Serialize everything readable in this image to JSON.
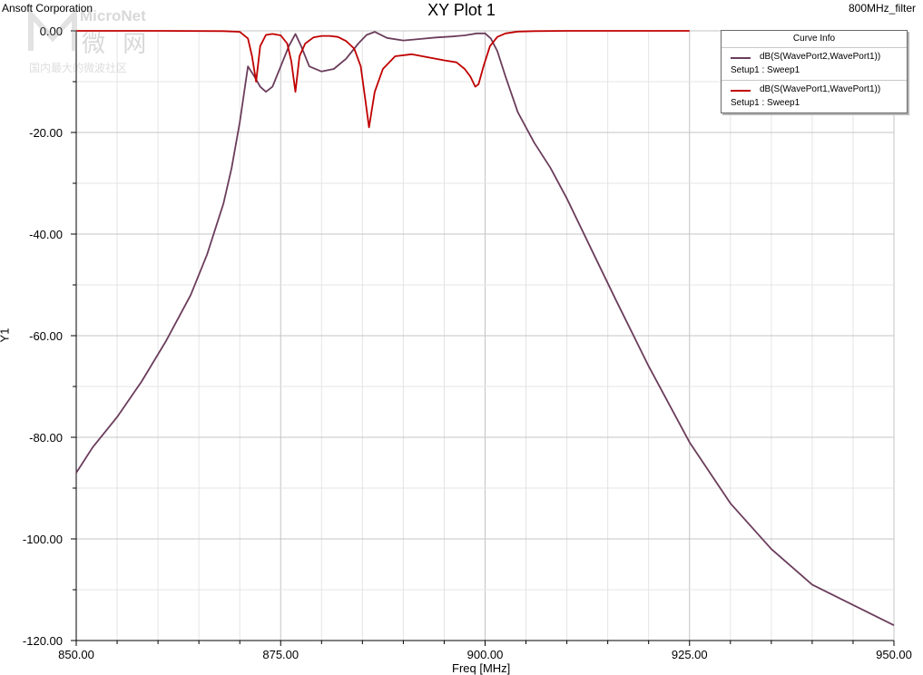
{
  "header": {
    "company": "Ansoft Corporation",
    "title": "XY Plot 1",
    "project": "800MHz_filter"
  },
  "watermark": {
    "brand": "MicroNet",
    "brand_cn": "微 网",
    "tagline": "国内最大的微波社区"
  },
  "legend": {
    "header": "Curve Info",
    "entries": [
      {
        "name": "dB(S(WavePort2,WavePort1))",
        "setup": "Setup1 : Sweep1",
        "color": "#6b3d5c"
      },
      {
        "name": "dB(S(WavePort1,WavePort1))",
        "setup": "Setup1 : Sweep1",
        "color": "#c00000"
      }
    ]
  },
  "chart_data": {
    "type": "line",
    "title": "XY Plot 1",
    "xlabel": "Freq [MHz]",
    "ylabel": "Y1",
    "xlim": [
      850,
      950
    ],
    "ylim": [
      -120,
      0
    ],
    "x_ticks": [
      "850.00",
      "875.00",
      "900.00",
      "925.00",
      "950.00"
    ],
    "y_ticks": [
      "0.00",
      "-20.00",
      "-40.00",
      "-60.00",
      "-80.00",
      "-100.00",
      "-120.00"
    ],
    "grid": true,
    "legend_position": "top-right",
    "series": [
      {
        "name": "dB(S(WavePort2,WavePort1))",
        "color": "#6b3d5c",
        "x": [
          850,
          852,
          855,
          858,
          861,
          864,
          866,
          868,
          869,
          870,
          871,
          871.8,
          872.5,
          873.2,
          874,
          875,
          876,
          876.8,
          877.5,
          878.5,
          880,
          881.5,
          883,
          884.5,
          885.5,
          886.5,
          888,
          890,
          892,
          894,
          896,
          897.5,
          899,
          900,
          900.7,
          901.5,
          902.5,
          904,
          906,
          908,
          910,
          913,
          916,
          920,
          925,
          930,
          935,
          940,
          945,
          950
        ],
        "y": [
          -87,
          -82,
          -76,
          -69,
          -61,
          -52,
          -44,
          -34,
          -27,
          -18,
          -7,
          -9,
          -11,
          -12,
          -11,
          -7,
          -3,
          -0.6,
          -3,
          -7,
          -8,
          -7.5,
          -5.5,
          -2.5,
          -0.8,
          -0.2,
          -1.4,
          -1.9,
          -1.6,
          -1.3,
          -1.1,
          -0.9,
          -0.5,
          -0.5,
          -1.5,
          -4,
          -9,
          -16,
          -22,
          -27,
          -33,
          -43,
          -53,
          -66,
          -81,
          -93,
          -102,
          -109,
          -113,
          -117
        ]
      },
      {
        "name": "dB(S(WavePort1,WavePort1))",
        "color": "#c00000",
        "x": [
          850,
          860,
          868,
          870,
          871,
          871.5,
          872,
          872.5,
          873.2,
          874,
          875,
          875.8,
          876.3,
          876.8,
          877.3,
          878,
          879,
          880,
          881,
          882,
          883,
          884,
          884.8,
          885.3,
          885.8,
          886.5,
          887.5,
          889,
          891,
          893,
          895,
          896.5,
          897.5,
          898.2,
          898.8,
          899.2,
          899.8,
          900.6,
          901.5,
          902.5,
          904,
          906,
          910,
          925
        ],
        "y": [
          0,
          0,
          -0.05,
          -0.2,
          -1.5,
          -5,
          -10,
          -3,
          -0.8,
          -0.6,
          -0.9,
          -2.5,
          -6,
          -12,
          -5,
          -2.5,
          -1.3,
          -1.0,
          -1.0,
          -1.2,
          -2.0,
          -3.5,
          -7,
          -13,
          -19,
          -12,
          -7.5,
          -5.0,
          -4.6,
          -5.2,
          -5.8,
          -6.2,
          -7.5,
          -9,
          -11,
          -10.5,
          -7,
          -3,
          -1.2,
          -0.5,
          -0.15,
          -0.05,
          0,
          0
        ]
      }
    ]
  }
}
